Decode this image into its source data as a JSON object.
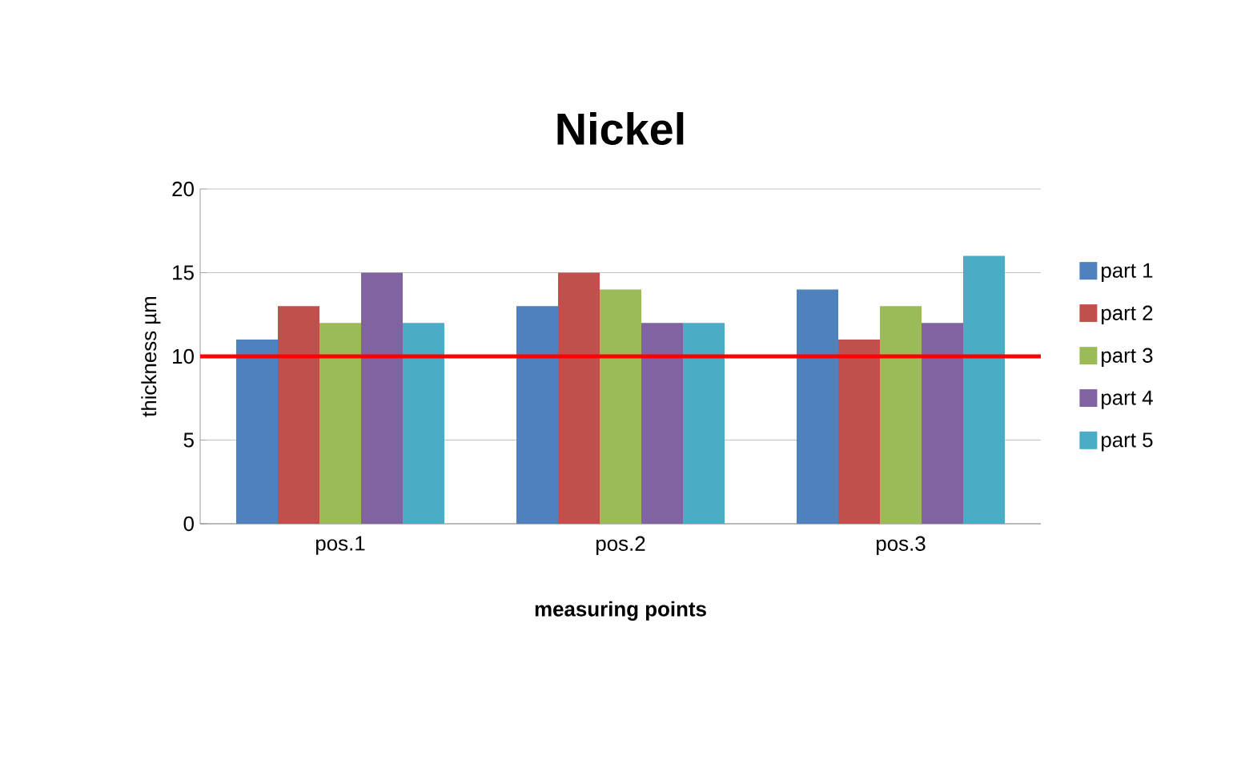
{
  "chart_data": {
    "type": "bar",
    "title": "Nickel",
    "xlabel": "measuring points",
    "ylabel": "thickness µm",
    "categories": [
      "pos.1",
      "pos.2",
      "pos.3"
    ],
    "series": [
      {
        "name": "part 1",
        "color": "#4f81bd",
        "values": [
          11,
          13,
          14
        ]
      },
      {
        "name": "part 2",
        "color": "#c0504d",
        "values": [
          13,
          15,
          11
        ]
      },
      {
        "name": "part 3",
        "color": "#9bbb59",
        "values": [
          12,
          14,
          13
        ]
      },
      {
        "name": "part 4",
        "color": "#8064a2",
        "values": [
          15,
          12,
          12
        ]
      },
      {
        "name": "part 5",
        "color": "#4bacc6",
        "values": [
          12,
          12,
          16
        ]
      }
    ],
    "ylim": [
      0,
      20
    ],
    "yticks": [
      0,
      5,
      10,
      15,
      20
    ],
    "grid": "y",
    "legend": "right",
    "ref_lines": [
      {
        "axis": "y",
        "value": 10,
        "color": "#ff0000"
      }
    ]
  }
}
